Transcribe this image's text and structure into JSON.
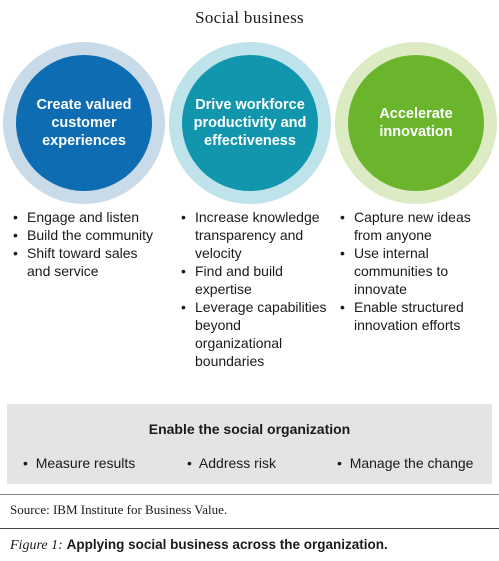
{
  "title": "Social business",
  "circles": [
    {
      "label": "Create valued customer experiences",
      "color": "#0e6cb3",
      "ring": "#c9dbe8"
    },
    {
      "label": "Drive workforce productivity and effectiveness",
      "color": "#1196ad",
      "ring": "#bfe3ea"
    },
    {
      "label": "Accelerate innovation",
      "color": "#6bb52c",
      "ring": "#dcebc4"
    }
  ],
  "bullet_symbol": "•",
  "columns": [
    [
      "Engage and listen",
      "Build the community",
      "Shift toward sales and service"
    ],
    [
      "Increase knowledge transparency and velocity",
      "Find and build expertise",
      "Leverage capabilities beyond organizational boundaries"
    ],
    [
      "Capture new ideas from anyone",
      "Use internal communities to innovate",
      "Enable structured innovation efforts"
    ]
  ],
  "enable_box": {
    "title": "Enable the social organization",
    "items": [
      "Measure results",
      "Address risk",
      "Manage the change"
    ]
  },
  "source": "Source: IBM Institute for Business Value.",
  "caption": {
    "label": "Figure 1:",
    "text": "Applying social business across the organization."
  }
}
